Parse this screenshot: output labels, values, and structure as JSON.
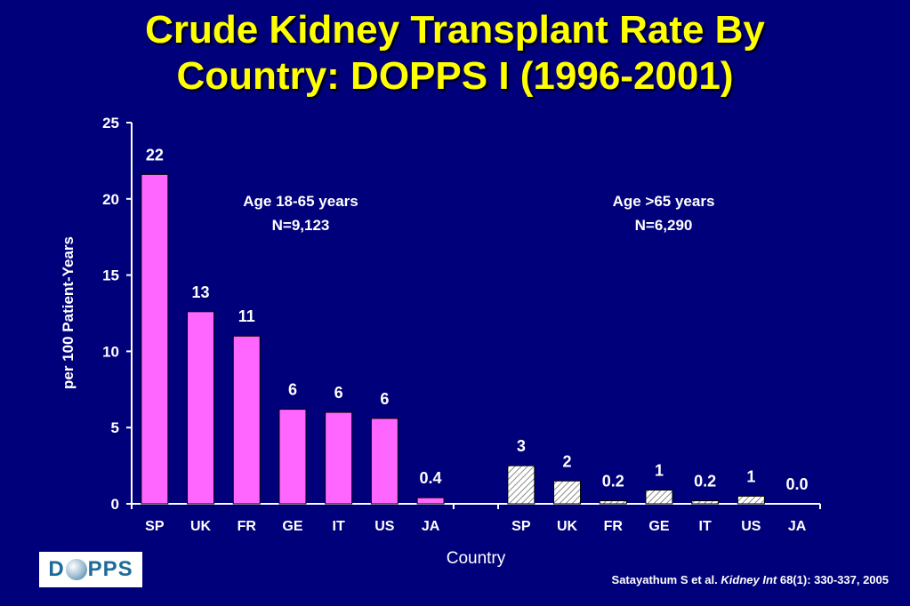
{
  "title_line1": "Crude Kidney Transplant Rate By",
  "title_line2": "Country: DOPPS I (1996-2001)",
  "logo": {
    "left": "D",
    "right": "PPS",
    "icon": "globe-icon"
  },
  "citation": {
    "authors": "Satayathum S et al.",
    "journal": "Kidney Int",
    "ref": "68(1): 330-337, 2005"
  },
  "chart_data": {
    "type": "bar",
    "title": "Crude Kidney Transplant Rate By Country: DOPPS I (1996-2001)",
    "xlabel": "Country",
    "ylabel": "per 100 Patient-Years",
    "ylim": [
      0,
      25
    ],
    "yticks": [
      0,
      5,
      10,
      15,
      20,
      25
    ],
    "grid": false,
    "groups": [
      {
        "label_line1": "Age 18-65 years",
        "label_line2": "N=9,123",
        "color": "#ff66ff",
        "pattern": "solid",
        "categories": [
          "SP",
          "UK",
          "FR",
          "GE",
          "IT",
          "US",
          "JA"
        ],
        "values": [
          21.6,
          12.6,
          11.0,
          6.2,
          6.0,
          5.6,
          0.4
        ],
        "data_labels": [
          "22",
          "13",
          "11",
          "6",
          "6",
          "6",
          "0.4"
        ]
      },
      {
        "label_line1": "Age >65 years",
        "label_line2": "N=6,290",
        "color": "#d9d9d9",
        "pattern": "hatched",
        "categories": [
          "SP",
          "UK",
          "FR",
          "GE",
          "IT",
          "US",
          "JA"
        ],
        "values": [
          2.5,
          1.5,
          0.2,
          0.9,
          0.2,
          0.5,
          0.0
        ],
        "data_labels": [
          "3",
          "2",
          "0.2",
          "1",
          "0.2",
          "1",
          "0.0"
        ]
      }
    ]
  }
}
